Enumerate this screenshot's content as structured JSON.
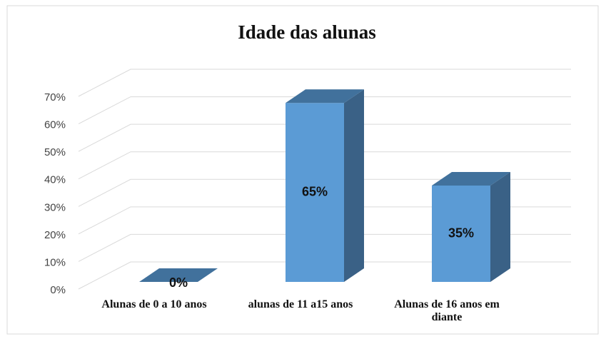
{
  "chart_data": {
    "type": "bar3d",
    "title": "Idade das alunas",
    "categories": [
      "Alunas de 0 a 10 anos",
      "alunas de 11 a15 anos",
      "Alunas de 16  anos em diante"
    ],
    "values": [
      0,
      65,
      35
    ],
    "value_labels": [
      "0%",
      "65%",
      "35%"
    ],
    "color": "#5b9bd5",
    "ylim": [
      0,
      70
    ],
    "yticks": [
      {
        "value": 0,
        "label": "0%"
      },
      {
        "value": 10,
        "label": "10%"
      },
      {
        "value": 20,
        "label": "20%"
      },
      {
        "value": 30,
        "label": "30%"
      },
      {
        "value": 40,
        "label": "40%"
      },
      {
        "value": 50,
        "label": "50%"
      },
      {
        "value": 60,
        "label": "60%"
      },
      {
        "value": 70,
        "label": "70%"
      }
    ],
    "grid": true
  }
}
